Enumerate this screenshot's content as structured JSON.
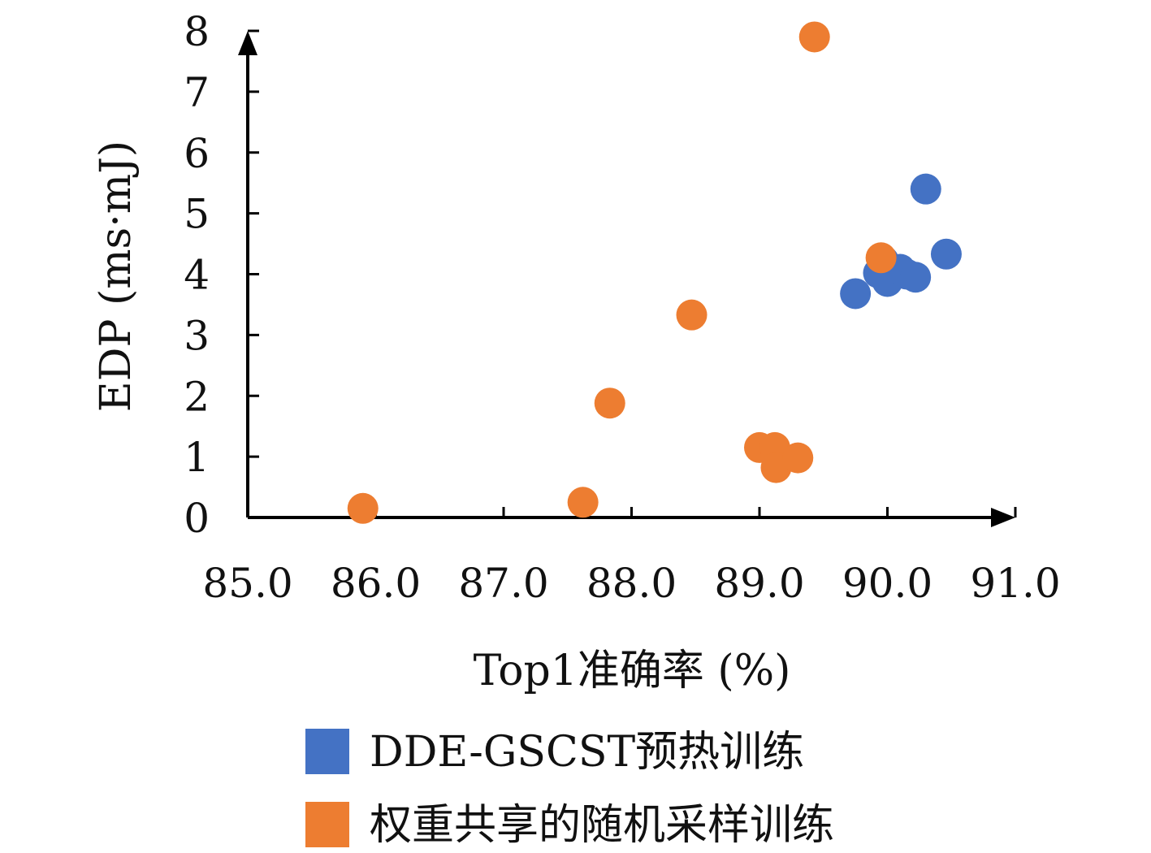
{
  "chart_data": {
    "type": "scatter",
    "title": "",
    "xlabel": "Top1准确率 (%)",
    "ylabel": "EDP (ms·mJ)",
    "xlim": [
      85.0,
      91.0
    ],
    "ylim": [
      0,
      8
    ],
    "xticks": [
      "85.0",
      "86.0",
      "87.0",
      "88.0",
      "89.0",
      "90.0",
      "91.0"
    ],
    "yticks": [
      "0",
      "1",
      "2",
      "3",
      "4",
      "5",
      "6",
      "7",
      "8"
    ],
    "legend_position": "bottom",
    "series": [
      {
        "name": "DDE-GSCST预热训练",
        "color": "#4472c4",
        "points": [
          {
            "x": 89.75,
            "y": 3.68
          },
          {
            "x": 89.93,
            "y": 4.02
          },
          {
            "x": 89.97,
            "y": 4.22
          },
          {
            "x": 90.0,
            "y": 3.88
          },
          {
            "x": 90.1,
            "y": 4.08
          },
          {
            "x": 90.15,
            "y": 4.0
          },
          {
            "x": 90.22,
            "y": 3.95
          },
          {
            "x": 90.3,
            "y": 5.4
          },
          {
            "x": 90.46,
            "y": 4.33
          }
        ]
      },
      {
        "name": "权重共享的随机采样训练",
        "color": "#ed7d31",
        "points": [
          {
            "x": 85.9,
            "y": 0.15
          },
          {
            "x": 87.62,
            "y": 0.25
          },
          {
            "x": 87.83,
            "y": 1.88
          },
          {
            "x": 88.47,
            "y": 3.33
          },
          {
            "x": 89.0,
            "y": 1.15
          },
          {
            "x": 89.12,
            "y": 1.15
          },
          {
            "x": 89.13,
            "y": 0.82
          },
          {
            "x": 89.3,
            "y": 0.98
          },
          {
            "x": 89.43,
            "y": 7.9
          },
          {
            "x": 89.95,
            "y": 4.27
          }
        ]
      }
    ]
  }
}
